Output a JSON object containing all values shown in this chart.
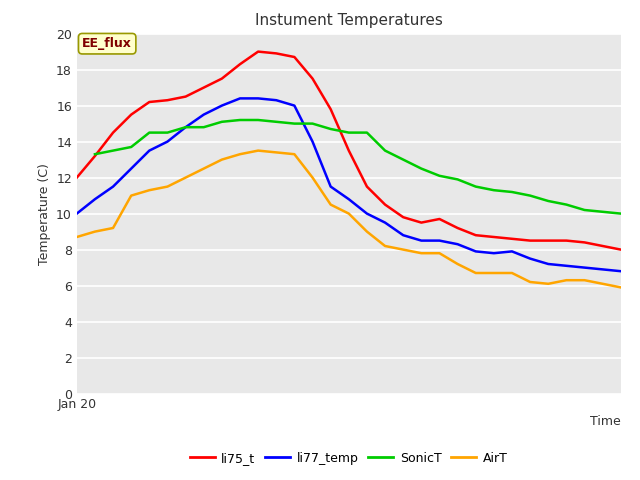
{
  "title": "Instument Temperatures",
  "xlabel": "Time",
  "ylabel": "Temperature (C)",
  "xlim": [
    0,
    30
  ],
  "ylim": [
    0,
    20
  ],
  "yticks": [
    0,
    2,
    4,
    6,
    8,
    10,
    12,
    14,
    16,
    18,
    20
  ],
  "x_label_text": "Jan 20",
  "annotation_text": "EE_flux",
  "plot_bg_color": "#e8e8e8",
  "fig_bg_color": "#ffffff",
  "grid_color": "#ffffff",
  "series": {
    "li75_t": {
      "color": "#ff0000",
      "x": [
        0,
        1,
        2,
        3,
        4,
        5,
        6,
        7,
        8,
        9,
        10,
        11,
        12,
        13,
        14,
        15,
        16,
        17,
        18,
        19,
        20,
        21,
        22,
        23,
        24,
        25,
        26,
        27,
        28,
        29,
        30
      ],
      "y": [
        12.0,
        13.2,
        14.5,
        15.5,
        16.2,
        16.3,
        16.5,
        17.0,
        17.5,
        18.3,
        19.0,
        18.9,
        18.7,
        17.5,
        15.8,
        13.5,
        11.5,
        10.5,
        9.8,
        9.5,
        9.7,
        9.2,
        8.8,
        8.7,
        8.6,
        8.5,
        8.5,
        8.5,
        8.4,
        8.2,
        8.0
      ]
    },
    "li77_temp": {
      "color": "#0000ff",
      "x": [
        0,
        1,
        2,
        3,
        4,
        5,
        6,
        7,
        8,
        9,
        10,
        11,
        12,
        13,
        14,
        15,
        16,
        17,
        18,
        19,
        20,
        21,
        22,
        23,
        24,
        25,
        26,
        27,
        28,
        29,
        30
      ],
      "y": [
        10.0,
        10.8,
        11.5,
        12.5,
        13.5,
        14.0,
        14.8,
        15.5,
        16.0,
        16.4,
        16.4,
        16.3,
        16.0,
        14.0,
        11.5,
        10.8,
        10.0,
        9.5,
        8.8,
        8.5,
        8.5,
        8.3,
        7.9,
        7.8,
        7.9,
        7.5,
        7.2,
        7.1,
        7.0,
        6.9,
        6.8
      ]
    },
    "SonicT": {
      "color": "#00cc00",
      "x": [
        1,
        2,
        3,
        4,
        5,
        6,
        7,
        8,
        9,
        10,
        11,
        12,
        13,
        14,
        15,
        16,
        17,
        18,
        19,
        20,
        21,
        22,
        23,
        24,
        25,
        26,
        27,
        28,
        29,
        30
      ],
      "y": [
        13.3,
        13.5,
        13.7,
        14.5,
        14.5,
        14.8,
        14.8,
        15.1,
        15.2,
        15.2,
        15.1,
        15.0,
        15.0,
        14.7,
        14.5,
        14.5,
        13.5,
        13.0,
        12.5,
        12.1,
        11.9,
        11.5,
        11.3,
        11.2,
        11.0,
        10.7,
        10.5,
        10.2,
        10.1,
        10.0
      ]
    },
    "AirT": {
      "color": "#ffa500",
      "x": [
        0,
        1,
        2,
        3,
        4,
        5,
        6,
        7,
        8,
        9,
        10,
        11,
        12,
        13,
        14,
        15,
        16,
        17,
        18,
        19,
        20,
        21,
        22,
        23,
        24,
        25,
        26,
        27,
        28,
        29,
        30
      ],
      "y": [
        8.7,
        9.0,
        9.2,
        11.0,
        11.3,
        11.5,
        12.0,
        12.5,
        13.0,
        13.3,
        13.5,
        13.4,
        13.3,
        12.0,
        10.5,
        10.0,
        9.0,
        8.2,
        8.0,
        7.8,
        7.8,
        7.2,
        6.7,
        6.7,
        6.7,
        6.2,
        6.1,
        6.3,
        6.3,
        6.1,
        5.9
      ]
    }
  },
  "legend_entries": [
    "li75_t",
    "li77_temp",
    "SonicT",
    "AirT"
  ],
  "legend_colors": [
    "#ff0000",
    "#0000ff",
    "#00cc00",
    "#ffa500"
  ]
}
